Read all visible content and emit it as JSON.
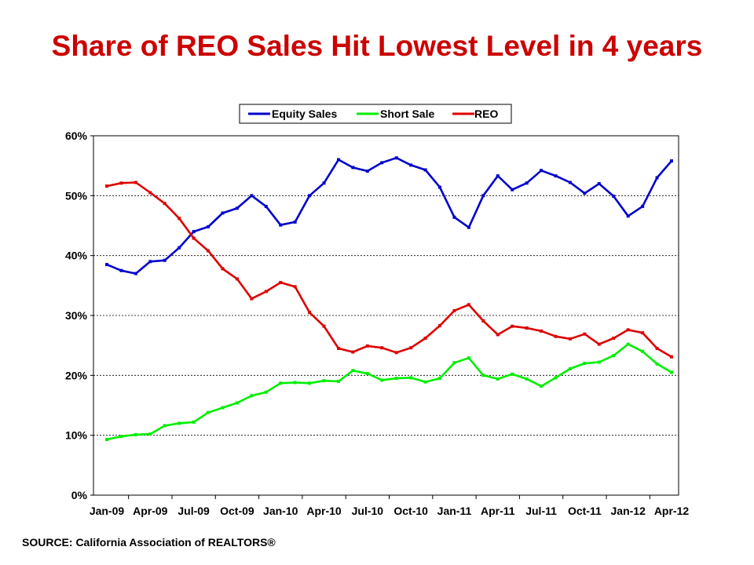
{
  "slide": {
    "title": "Share of REO Sales Hit Lowest Level in 4 years",
    "source": "SOURCE: California Association of REALTORS®"
  },
  "chart_data": {
    "type": "line",
    "ylim": [
      0,
      60
    ],
    "y_ticks": [
      0,
      10,
      20,
      30,
      40,
      50,
      60
    ],
    "y_tick_labels": [
      "0%",
      "10%",
      "20%",
      "30%",
      "40%",
      "50%",
      "60%"
    ],
    "x_tick_labels": [
      "Jan-09",
      "Apr-09",
      "Jul-09",
      "Oct-09",
      "Jan-10",
      "Apr-10",
      "Jul-10",
      "Oct-10",
      "Jan-11",
      "Apr-11",
      "Jul-11",
      "Oct-11",
      "Jan-12",
      "Apr-12"
    ],
    "x": [
      "Jan-09",
      "Feb-09",
      "Mar-09",
      "Apr-09",
      "May-09",
      "Jun-09",
      "Jul-09",
      "Aug-09",
      "Sep-09",
      "Oct-09",
      "Nov-09",
      "Dec-09",
      "Jan-10",
      "Feb-10",
      "Mar-10",
      "Apr-10",
      "May-10",
      "Jun-10",
      "Jul-10",
      "Aug-10",
      "Sep-10",
      "Oct-10",
      "Nov-10",
      "Dec-10",
      "Jan-11",
      "Feb-11",
      "Mar-11",
      "Apr-11",
      "May-11",
      "Jun-11",
      "Jul-11",
      "Aug-11",
      "Sep-11",
      "Oct-11",
      "Nov-11",
      "Dec-11",
      "Jan-12",
      "Feb-12",
      "Mar-12",
      "Apr-12"
    ],
    "grid": "horizontal",
    "legend_position": "top-center",
    "series": [
      {
        "name": "Equity Sales",
        "color": "#0000cc",
        "values": [
          38.5,
          37.5,
          37.0,
          39.0,
          39.2,
          41.3,
          44.0,
          44.8,
          47.1,
          47.9,
          50.0,
          48.2,
          45.1,
          45.6,
          50.0,
          52.1,
          56.0,
          54.7,
          54.1,
          55.5,
          56.3,
          55.1,
          54.3,
          51.4,
          46.4,
          44.7,
          50.0,
          53.3,
          51.0,
          52.1,
          54.2,
          53.3,
          52.2,
          50.4,
          52.0,
          49.9,
          46.6,
          48.2,
          53.0,
          55.8
        ]
      },
      {
        "name": "Short Sale",
        "color": "#00ee00",
        "values": [
          9.3,
          9.8,
          10.1,
          10.2,
          11.6,
          12.0,
          12.2,
          13.8,
          14.6,
          15.4,
          16.6,
          17.2,
          18.7,
          18.8,
          18.7,
          19.1,
          19.0,
          20.8,
          20.3,
          19.2,
          19.5,
          19.6,
          18.9,
          19.5,
          22.1,
          22.9,
          20.0,
          19.4,
          20.2,
          19.4,
          18.2,
          19.6,
          21.1,
          22.0,
          22.2,
          23.3,
          25.2,
          24.0,
          21.9,
          20.5
        ]
      },
      {
        "name": "REO",
        "color": "#dd0000",
        "values": [
          51.6,
          52.1,
          52.2,
          50.5,
          48.7,
          46.2,
          42.9,
          40.8,
          37.8,
          36.1,
          32.8,
          34.0,
          35.5,
          34.8,
          30.5,
          28.2,
          24.5,
          23.9,
          24.9,
          24.6,
          23.8,
          24.6,
          26.2,
          28.3,
          30.8,
          31.8,
          29.1,
          26.8,
          28.2,
          27.9,
          27.4,
          26.5,
          26.1,
          26.9,
          25.2,
          26.2,
          27.6,
          27.1,
          24.5,
          23.1
        ]
      }
    ]
  }
}
